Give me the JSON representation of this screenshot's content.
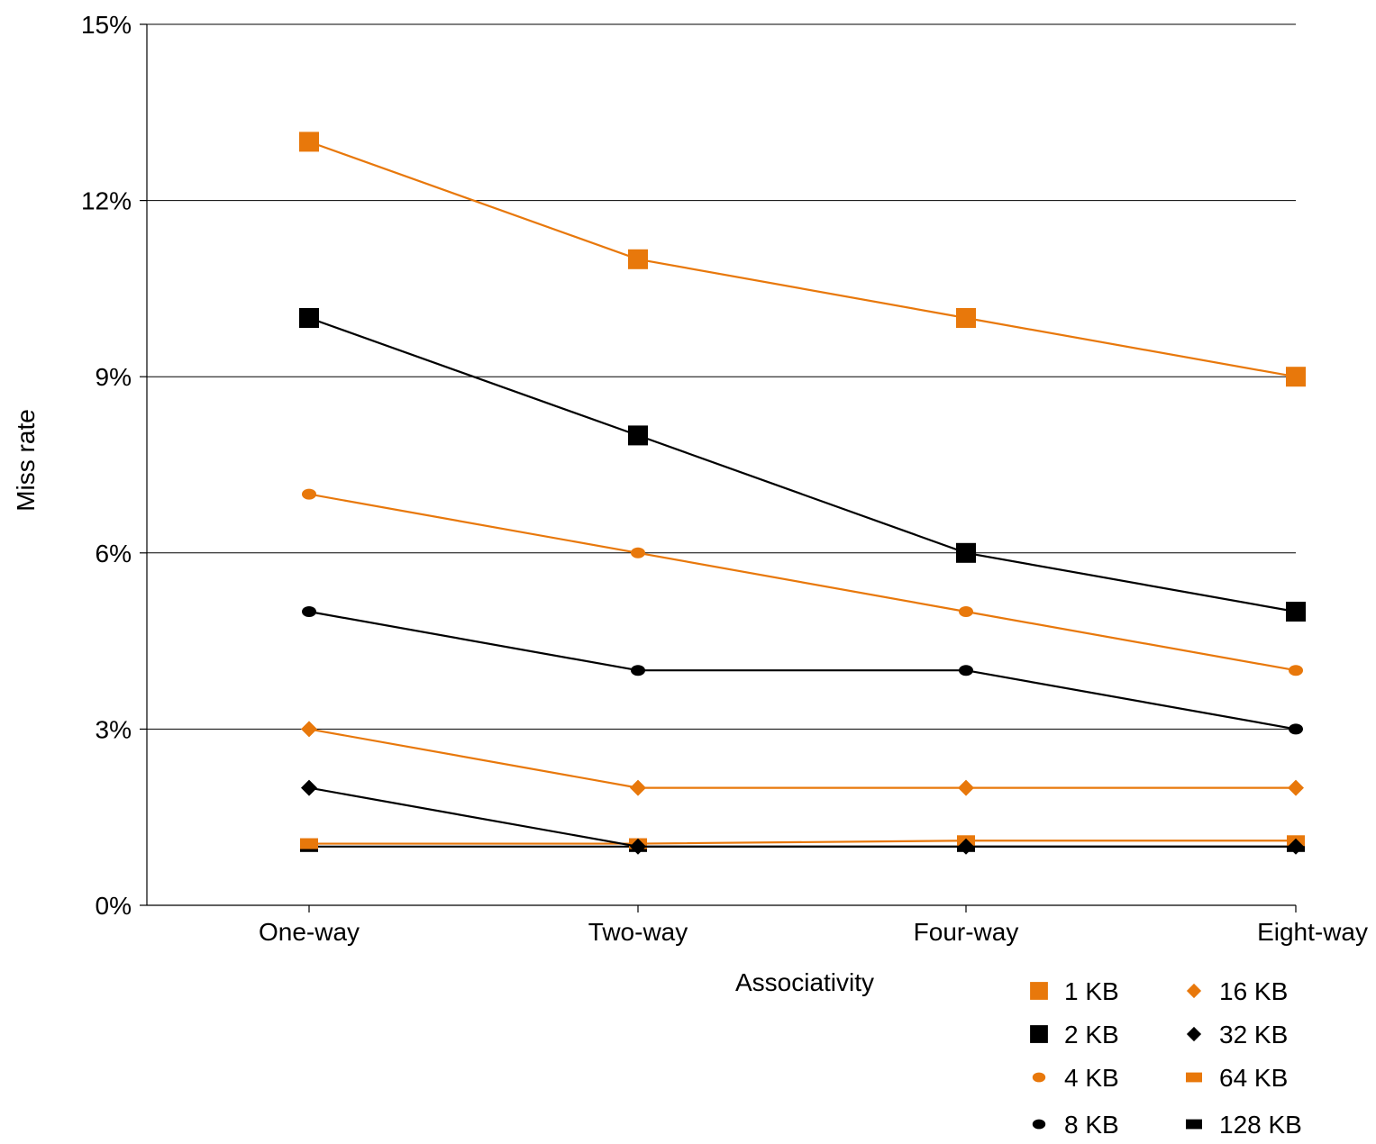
{
  "chart_data": {
    "type": "line",
    "title": "",
    "xlabel": "Associativity",
    "ylabel": "Miss rate",
    "categories": [
      "One-way",
      "Two-way",
      "Four-way",
      "Eight-way"
    ],
    "y_ticks": [
      "0%",
      "3%",
      "6%",
      "9%",
      "12%",
      "15%"
    ],
    "y_tick_values": [
      0,
      3,
      6,
      9,
      12,
      15
    ],
    "ylim": [
      0,
      15
    ],
    "y_unit": "%",
    "grid": "horizontal",
    "legend_position": "bottom-right",
    "series": [
      {
        "name": "1 KB",
        "values": [
          13,
          11,
          10,
          9
        ],
        "color": "#E8780B",
        "marker": "square"
      },
      {
        "name": "2 KB",
        "values": [
          10,
          8,
          6,
          5
        ],
        "color": "#000000",
        "marker": "square"
      },
      {
        "name": "4 KB",
        "values": [
          7,
          6,
          5,
          4
        ],
        "color": "#E8780B",
        "marker": "circle"
      },
      {
        "name": "8 KB",
        "values": [
          5,
          4,
          4,
          3
        ],
        "color": "#000000",
        "marker": "circle"
      },
      {
        "name": "16 KB",
        "values": [
          3,
          2,
          2,
          2
        ],
        "color": "#E8780B",
        "marker": "diamond"
      },
      {
        "name": "32 KB",
        "values": [
          2,
          1,
          1,
          1
        ],
        "color": "#000000",
        "marker": "diamond"
      },
      {
        "name": "64 KB",
        "values": [
          1.05,
          1.05,
          1.1,
          1.1
        ],
        "color": "#E8780B",
        "marker": "bar"
      },
      {
        "name": "128 KB",
        "values": [
          1,
          1,
          1,
          1
        ],
        "color": "#000000",
        "marker": "bar"
      }
    ]
  }
}
